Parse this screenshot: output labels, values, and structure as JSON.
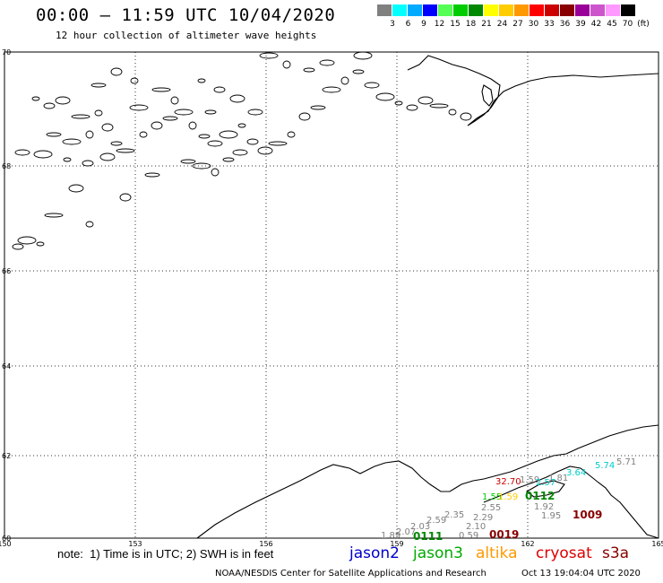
{
  "header": {
    "title": "00:00 – 11:59 UTC 10/04/2020",
    "subtitle": "12 hour collection of altimeter wave heights"
  },
  "legend": {
    "colors": [
      "#808080",
      "#00ffff",
      "#00aaff",
      "#0000ff",
      "#55ff55",
      "#00cc00",
      "#008800",
      "#ffff00",
      "#ffcc00",
      "#ff9900",
      "#ff0000",
      "#cc0000",
      "#880000",
      "#990099",
      "#cc55cc",
      "#ff99ff",
      "#000000"
    ],
    "tick_labels": [
      "3",
      "6",
      "9",
      "12",
      "15",
      "18",
      "21",
      "24",
      "27",
      "30",
      "33",
      "36",
      "39",
      "42",
      "45",
      "70",
      "(ft)"
    ]
  },
  "map": {
    "lat_labels": [
      "70",
      "68",
      "66",
      "64",
      "62",
      "60"
    ],
    "lon_labels": [
      "150",
      "153",
      "156",
      "159",
      "162",
      "165"
    ],
    "observations": [
      {
        "text": "32.70",
        "color": "#cc0000"
      },
      {
        "text": "1.59",
        "color": "#808080"
      },
      {
        "text": "2.57",
        "color": "#00cccc"
      },
      {
        "text": "3.64",
        "color": "#00cccc"
      },
      {
        "text": "5.74",
        "color": "#00cccc"
      },
      {
        "text": "5.71",
        "color": "#808080"
      },
      {
        "text": "1.81",
        "color": "#808080"
      },
      {
        "text": "1.55",
        "color": "#00cc00"
      },
      {
        "text": "1.59",
        "color": "#ffcc00"
      },
      {
        "text": "0112",
        "color": "#008800"
      },
      {
        "text": "2.55",
        "color": "#808080"
      },
      {
        "text": "1.92",
        "color": "#808080"
      },
      {
        "text": "2.29",
        "color": "#808080"
      },
      {
        "text": "1.95",
        "color": "#808080"
      },
      {
        "text": "1009",
        "color": "#880000"
      },
      {
        "text": "2.10",
        "color": "#808080"
      },
      {
        "text": "0.59",
        "color": "#808080"
      },
      {
        "text": "0019",
        "color": "#880000"
      },
      {
        "text": "2.59",
        "color": "#808080"
      },
      {
        "text": "2.35",
        "color": "#808080"
      },
      {
        "text": "2.03",
        "color": "#808080"
      },
      {
        "text": "2.07",
        "color": "#808080"
      },
      {
        "text": "1.89",
        "color": "#808080"
      },
      {
        "text": "0111",
        "color": "#008800"
      }
    ]
  },
  "footer": {
    "note": "note:  1) Time is in UTC; 2) SWH is in feet",
    "satellites": [
      {
        "name": "jason2",
        "color": "#0000cc"
      },
      {
        "name": "jason3",
        "color": "#00aa00"
      },
      {
        "name": "altika",
        "color": "#ff9900"
      },
      {
        "name": "cryosat",
        "color": "#dd0000"
      },
      {
        "name": "s3a",
        "color": "#880000"
      }
    ],
    "credit": "NOAA/NESDIS Center for Satellite Applications and Research",
    "date": "Oct 13 19:04:04 UTC 2020"
  }
}
